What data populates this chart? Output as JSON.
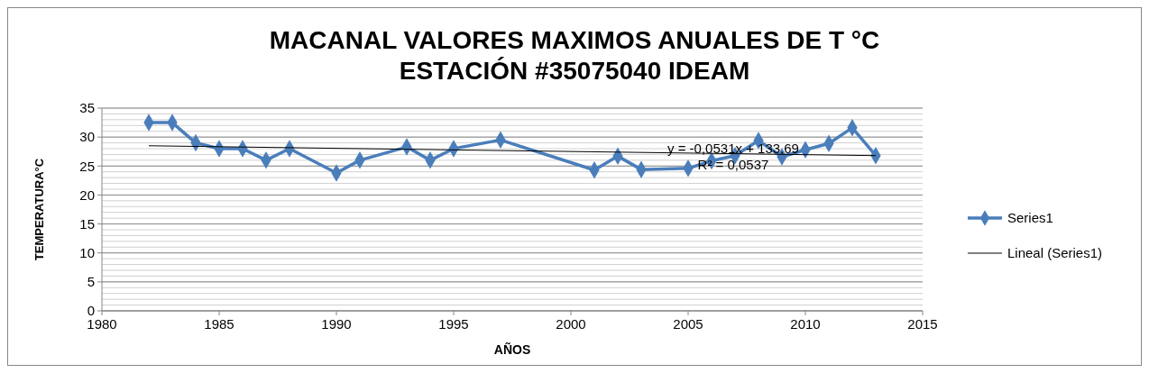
{
  "chart_data": {
    "type": "line",
    "title": "MACANAL VALORES MAXIMOS  ANUALES DE T °C ESTACIÓN #35075040 IDEAM",
    "xlabel": "AÑOS",
    "ylabel": "TEMPERATURA°C",
    "xlim": [
      1980,
      2015
    ],
    "xticks": [
      1980,
      1985,
      1990,
      1995,
      2000,
      2005,
      2010,
      2015
    ],
    "ylim": [
      0,
      35
    ],
    "yticks": [
      0,
      5,
      10,
      15,
      20,
      25,
      30,
      35
    ],
    "grid": "y",
    "legend": "right",
    "series": [
      {
        "name": "Series1",
        "color": "#4a7ebb",
        "marker": "diamond",
        "x": [
          1982,
          1983,
          1984,
          1985,
          1986,
          1987,
          1988,
          1990,
          1991,
          1993,
          1994,
          1995,
          1997,
          2001,
          2002,
          2003,
          2005,
          2006,
          2007,
          2008,
          2009,
          2010,
          2011,
          2012,
          2013
        ],
        "values": [
          32.5,
          32.5,
          29,
          28,
          28,
          26,
          28,
          23.8,
          26,
          28.3,
          26,
          28,
          29.5,
          24.3,
          26.7,
          24.4,
          24.6,
          25.9,
          26.8,
          29.4,
          26.6,
          27.8,
          28.9,
          31.6,
          26.8
        ]
      },
      {
        "name": "Lineal (Series1)",
        "type": "line",
        "color": "#000000",
        "marker": "none",
        "x": [
          1982,
          2013
        ],
        "values": [
          28.5,
          26.8
        ]
      }
    ],
    "annotations": [
      "y = -0,0531x + 133,69",
      "R² = 0,0537"
    ]
  }
}
